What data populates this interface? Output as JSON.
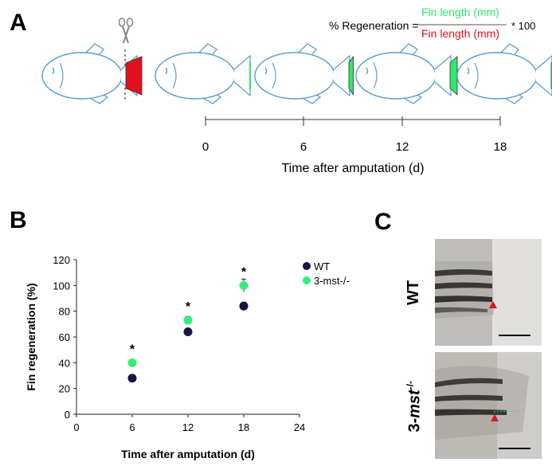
{
  "panels": {
    "a": "A",
    "b": "B",
    "c": "C"
  },
  "formula": {
    "lhs": "% Regeneration =",
    "numerator": "Fin length (mm)",
    "denominator": "Fin length (mm)",
    "multiplier": "* 100",
    "numerator_color": "#2ee86a",
    "denominator_color": "#e0121b"
  },
  "timeline": {
    "ticks": [
      "0",
      "6",
      "12",
      "18"
    ],
    "label": "Time after amputation (d)"
  },
  "fish_stages": [
    {
      "fin_color": "#e0121b",
      "regrowth": 1.0,
      "amputated": true
    },
    {
      "fin_color": "#2ee86a",
      "regrowth": 0.0,
      "amputated": false
    },
    {
      "fin_color": "#2ee86a",
      "regrowth": 0.35,
      "amputated": false
    },
    {
      "fin_color": "#2ee86a",
      "regrowth": 0.7,
      "amputated": false
    },
    {
      "fin_color": "#2ee86a",
      "regrowth": 1.0,
      "amputated": false
    }
  ],
  "chart_data": {
    "type": "scatter",
    "xlabel": "Time after amputation (d)",
    "ylabel": "Fin regeneration (%)",
    "xlim": [
      0,
      24
    ],
    "ylim": [
      0,
      120
    ],
    "xticks": [
      "0",
      "6",
      "12",
      "18",
      "24"
    ],
    "yticks": [
      "0",
      "20",
      "40",
      "60",
      "80",
      "100",
      "120"
    ],
    "legend_position": "top-right",
    "series": [
      {
        "name": "WT",
        "color": "#12173f",
        "x": [
          6,
          12,
          18
        ],
        "y": [
          28,
          64,
          84
        ],
        "err": [
          2,
          2,
          3
        ]
      },
      {
        "name": "3-mst-/-",
        "color": "#33ef7a",
        "x": [
          6,
          12,
          18
        ],
        "y": [
          40,
          73,
          100
        ],
        "err": [
          2,
          3,
          5
        ]
      }
    ],
    "annotations": [
      {
        "x": 6,
        "y": 40,
        "text": "*"
      },
      {
        "x": 12,
        "y": 73,
        "text": "*"
      },
      {
        "x": 18,
        "y": 100,
        "text": "*"
      }
    ]
  },
  "panel_c": {
    "wt_label": "WT",
    "mst_label_main": "3-",
    "mst_label_italic": "mst",
    "mst_label_sup": "-/-",
    "marker_color": "#e0121b"
  }
}
